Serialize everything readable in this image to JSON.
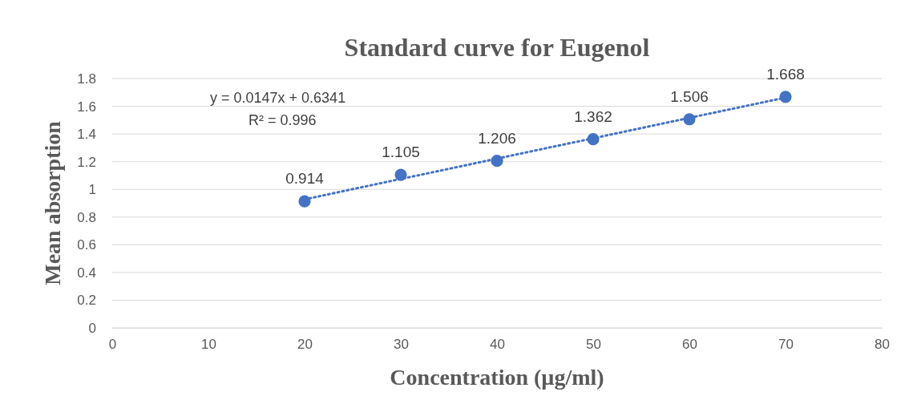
{
  "chart_data": {
    "type": "scatter",
    "title": "Standard curve for Eugenol",
    "xlabel": "Concentration (µg/ml)",
    "ylabel": "Mean absorption",
    "xlim": [
      0,
      80
    ],
    "xticks": [
      0,
      10,
      20,
      30,
      40,
      50,
      60,
      70,
      80
    ],
    "ylim": [
      0,
      1.8
    ],
    "yticks": [
      0,
      {
        "value": 0.2,
        "label": "0.2"
      },
      {
        "value": 0.4,
        "label": "0.4"
      },
      {
        "value": 0.6,
        "label": "0.6"
      },
      {
        "value": 0.8,
        "label": "0.8"
      },
      1,
      {
        "value": 1.2,
        "label": "1.2"
      },
      {
        "value": 1.4,
        "label": "1.4"
      },
      {
        "value": 1.6,
        "label": "1.6"
      },
      {
        "value": 1.8,
        "label": "1.8"
      }
    ],
    "grid": "y",
    "x": [
      20,
      30,
      40,
      50,
      60,
      70
    ],
    "series": [
      {
        "type": "scatter",
        "color": "#4472c4",
        "marker": "circle",
        "values": [
          0.914,
          1.105,
          1.206,
          1.362,
          1.506,
          1.668
        ],
        "value_labels": [
          "0.914",
          "1.105",
          "1.206",
          "1.362",
          "1.506",
          "1.668"
        ]
      },
      {
        "type": "line",
        "color": "#4472c4",
        "marker": "none",
        "line_style": "dotted",
        "x": [
          20,
          70
        ],
        "values": [
          0.928,
          1.663
        ]
      }
    ],
    "annotations": [
      "y = 0.0147x + 0.6341",
      "R² = 0.996"
    ]
  }
}
